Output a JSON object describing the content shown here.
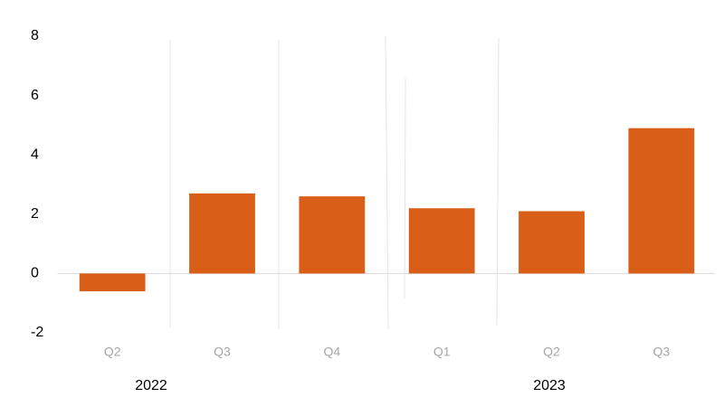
{
  "chart_data": {
    "type": "bar",
    "categories": [
      "Q2",
      "Q3",
      "Q4",
      "Q1",
      "Q2",
      "Q3"
    ],
    "groups": [
      "2022",
      "2023"
    ],
    "values": [
      -0.6,
      2.7,
      2.6,
      2.2,
      2.1,
      4.9
    ],
    "color": "#d95f18",
    "ylim": [
      -2,
      8
    ],
    "yticks": [
      -2,
      0,
      2,
      4,
      6,
      8
    ],
    "grid": false
  }
}
